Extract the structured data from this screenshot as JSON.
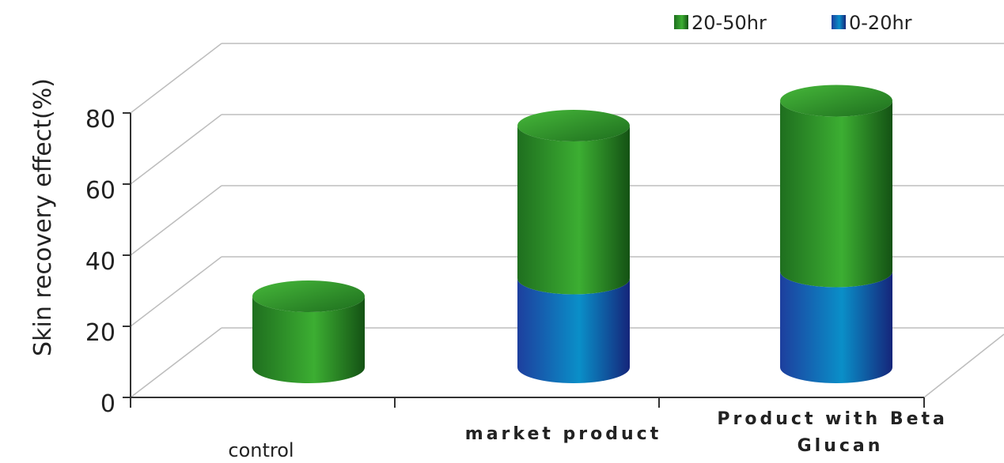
{
  "chart_data": {
    "type": "bar",
    "style": "3d-cylinder-stacked",
    "categories": [
      "control",
      "market product",
      "Product with Beta Glucan"
    ],
    "series": [
      {
        "name": "0-20hr",
        "values": [
          0,
          25,
          27
        ],
        "color": "#1a6fc4"
      },
      {
        "name": "20-50hr",
        "values": [
          20,
          43,
          48
        ],
        "color": "#2e9a2e"
      }
    ],
    "title": "",
    "xlabel": "",
    "ylabel": "Skin recovery effect(%)",
    "ylim": [
      0,
      80
    ],
    "yticks": [
      0,
      20,
      40,
      60,
      80
    ],
    "grid": true,
    "legend": "top-right"
  }
}
